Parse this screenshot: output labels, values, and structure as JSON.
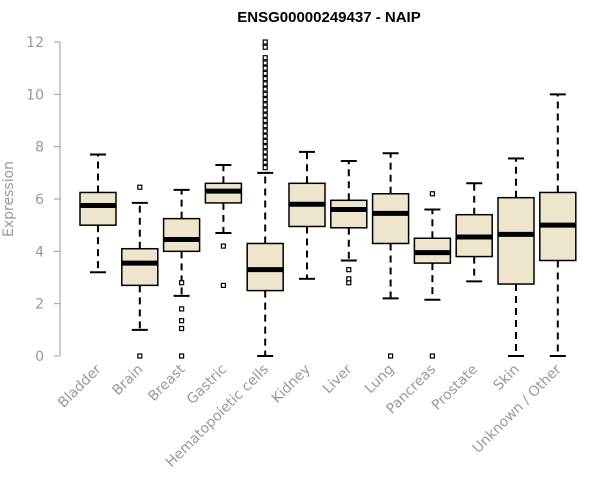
{
  "chart_data": {
    "type": "boxplot",
    "title": "ENSG00000249437 - NAIP",
    "xlabel": "",
    "ylabel": "Expression",
    "ylim": [
      0,
      12
    ],
    "yticks": [
      0,
      2,
      4,
      6,
      8,
      10,
      12
    ],
    "grid": false,
    "legend": "none",
    "box_fill": "#ede6cc",
    "line_color": "#000000",
    "categories": [
      "Bladder",
      "Brain",
      "Breast",
      "Gastric",
      "Hematopoietic cells",
      "Kidney",
      "Liver",
      "Lung",
      "Pancreas",
      "Prostate",
      "Skin",
      "Unknown / Other"
    ],
    "boxes": [
      {
        "category": "Bladder",
        "whisker_low": 3.2,
        "q1": 5.0,
        "median": 5.75,
        "q3": 6.25,
        "whisker_high": 7.7,
        "outliers": []
      },
      {
        "category": "Brain",
        "whisker_low": 1.0,
        "q1": 2.7,
        "median": 3.55,
        "q3": 4.1,
        "whisker_high": 5.85,
        "outliers": [
          0.0,
          6.45
        ]
      },
      {
        "category": "Breast",
        "whisker_low": 2.3,
        "q1": 4.0,
        "median": 4.45,
        "q3": 5.25,
        "whisker_high": 6.35,
        "outliers": [
          0.0,
          1.05,
          1.35,
          1.8,
          2.8
        ]
      },
      {
        "category": "Gastric",
        "whisker_low": 4.7,
        "q1": 5.85,
        "median": 6.3,
        "q3": 6.6,
        "whisker_high": 7.3,
        "outliers": [
          2.7,
          4.2
        ]
      },
      {
        "category": "Hematopoietic cells",
        "whisker_low": 0.0,
        "q1": 2.5,
        "median": 3.3,
        "q3": 4.3,
        "whisker_high": 7.0,
        "outliers": [
          7.2,
          7.4,
          7.6,
          7.8,
          8.0,
          8.2,
          8.4,
          8.6,
          8.8,
          9.0,
          9.2,
          9.4,
          9.6,
          9.8,
          10.0,
          10.2,
          10.4,
          10.6,
          10.8,
          11.0,
          11.2,
          11.4,
          11.8,
          12.0
        ]
      },
      {
        "category": "Kidney",
        "whisker_low": 2.95,
        "q1": 4.95,
        "median": 5.8,
        "q3": 6.6,
        "whisker_high": 7.8,
        "outliers": []
      },
      {
        "category": "Liver",
        "whisker_low": 3.65,
        "q1": 4.9,
        "median": 5.6,
        "q3": 5.95,
        "whisker_high": 7.45,
        "outliers": [
          2.8,
          2.95,
          3.3
        ]
      },
      {
        "category": "Lung",
        "whisker_low": 2.2,
        "q1": 4.3,
        "median": 5.45,
        "q3": 6.2,
        "whisker_high": 7.75,
        "outliers": [
          0.0
        ]
      },
      {
        "category": "Pancreas",
        "whisker_low": 2.15,
        "q1": 3.55,
        "median": 3.95,
        "q3": 4.5,
        "whisker_high": 5.6,
        "outliers": [
          0.0,
          6.2
        ]
      },
      {
        "category": "Prostate",
        "whisker_low": 2.85,
        "q1": 3.8,
        "median": 4.55,
        "q3": 5.4,
        "whisker_high": 6.6,
        "outliers": []
      },
      {
        "category": "Skin",
        "whisker_low": 0.0,
        "q1": 2.75,
        "median": 4.65,
        "q3": 6.05,
        "whisker_high": 7.55,
        "outliers": []
      },
      {
        "category": "Unknown / Other",
        "whisker_low": 0.0,
        "q1": 3.65,
        "median": 5.0,
        "q3": 6.25,
        "whisker_high": 10.0,
        "outliers": []
      }
    ]
  }
}
